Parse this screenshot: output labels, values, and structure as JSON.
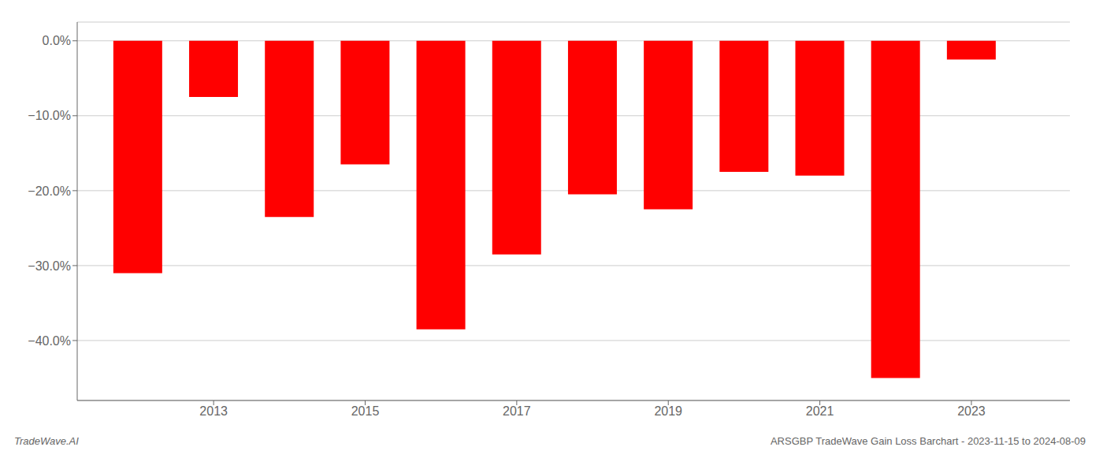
{
  "chart_data": {
    "type": "bar",
    "x": [
      2012,
      2013,
      2014,
      2015,
      2016,
      2017,
      2018,
      2019,
      2020,
      2021,
      2022,
      2023
    ],
    "values": [
      -31.0,
      -7.5,
      -23.5,
      -16.5,
      -38.5,
      -28.5,
      -20.5,
      -22.5,
      -17.5,
      -18.0,
      -45.0,
      -2.5
    ],
    "color": "#ff0000",
    "xlim": [
      2011.2,
      2024.3
    ],
    "xticks": [
      2013,
      2015,
      2017,
      2019,
      2021,
      2023
    ],
    "ylim": [
      -48,
      2.5
    ],
    "yticks": [
      {
        "value": 0.0,
        "label": "0.0%"
      },
      {
        "value": -10.0,
        "label": "−10.0%"
      },
      {
        "value": -20.0,
        "label": "−20.0%"
      },
      {
        "value": -30.0,
        "label": "−30.0%"
      },
      {
        "value": -40.0,
        "label": "−40.0%"
      }
    ],
    "grid": true,
    "annotations": [
      "TradeWave.AI",
      "ARSGBP TradeWave Gain Loss Barchart - 2023-11-15 to 2024-08-09"
    ]
  }
}
